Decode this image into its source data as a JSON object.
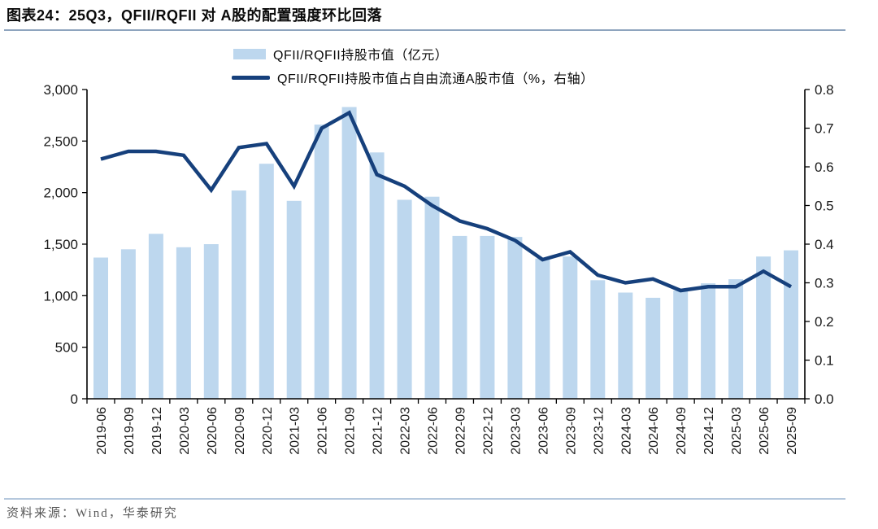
{
  "header": {
    "title": "图表24：25Q3，QFII/RQFII 对 A股的配置强度环比回落"
  },
  "legend": [
    {
      "label": "QFII/RQFII持股市值（亿元）",
      "type": "bar"
    },
    {
      "label": "QFII/RQFII持股市值占自由流通A股市值（%，右轴）",
      "type": "line"
    }
  ],
  "footer": {
    "source": "资料来源：Wind，华泰研究"
  },
  "colors": {
    "bar": "#BDD7EE",
    "line": "#16407C",
    "axis": "#000000",
    "tick_text": "#1a1a1a",
    "title_rule": "#8EA4BE",
    "footer_rule": "#B5C8DD",
    "footer_text": "#595959"
  },
  "chart_data": {
    "type": "bar+line",
    "title": "25Q3，QFII/RQFII 对 A股的配置强度环比回落",
    "categories": [
      "2019-06",
      "2019-09",
      "2019-12",
      "2020-03",
      "2020-06",
      "2020-09",
      "2020-12",
      "2021-03",
      "2021-06",
      "2021-09",
      "2021-12",
      "2022-03",
      "2022-06",
      "2022-09",
      "2022-12",
      "2023-03",
      "2023-06",
      "2023-09",
      "2023-12",
      "2024-03",
      "2024-06",
      "2024-09",
      "2024-12",
      "2025-03",
      "2025-06",
      "2025-09"
    ],
    "series": [
      {
        "name": "QFII/RQFII持股市值（亿元）",
        "type": "bar",
        "axis": "left",
        "values": [
          1370,
          1450,
          1600,
          1470,
          1500,
          2020,
          2280,
          1920,
          2660,
          2830,
          2390,
          1930,
          1960,
          1580,
          1580,
          1570,
          1360,
          1380,
          1150,
          1030,
          980,
          1050,
          1120,
          1160,
          1380,
          1440
        ]
      },
      {
        "name": "QFII/RQFII持股市值占自由流通A股市值（%，右轴）",
        "type": "line",
        "axis": "right",
        "values": [
          0.62,
          0.64,
          0.64,
          0.63,
          0.54,
          0.65,
          0.66,
          0.55,
          0.7,
          0.74,
          0.58,
          0.55,
          0.5,
          0.46,
          0.44,
          0.41,
          0.36,
          0.38,
          0.32,
          0.3,
          0.31,
          0.28,
          0.29,
          0.29,
          0.33,
          0.29
        ]
      }
    ],
    "left_axis": {
      "min": 0,
      "max": 3000,
      "step": 500,
      "tick_labels": [
        "0",
        "500",
        "1,000",
        "1,500",
        "2,000",
        "2,500",
        "3,000"
      ]
    },
    "right_axis": {
      "min": 0,
      "max": 0.8,
      "step": 0.1,
      "tick_labels": [
        "0.0",
        "0.1",
        "0.2",
        "0.3",
        "0.4",
        "0.5",
        "0.6",
        "0.7",
        "0.8"
      ]
    },
    "grid": false,
    "legend_position": "top-center",
    "xlabel": "",
    "ylabel_left": "亿元",
    "ylabel_right": "%"
  }
}
